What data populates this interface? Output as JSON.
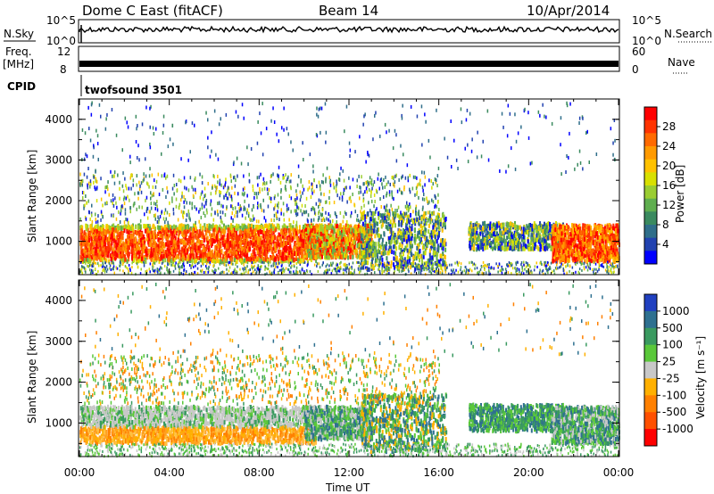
{
  "header": {
    "station": "Dome C East (fitACF)",
    "beam": "Beam 14",
    "date": "10/Apr/2014"
  },
  "top_panels": {
    "nsky_label": "N.Sky",
    "nsky_ticks": [
      "10^5",
      "10^0"
    ],
    "nsearch_label": "N.Search",
    "nsearch_ticks": [
      "10^5",
      "10^0"
    ],
    "freq_label": "Freq.",
    "freq_unit": "[MHz]",
    "freq_ticks": [
      "12",
      "8"
    ],
    "nave_label": "Nave",
    "nave_ticks": [
      "60",
      "0"
    ],
    "cpid_label": "CPID",
    "cpid_value": "twofsound 3501"
  },
  "chart_data": [
    {
      "type": "heatmap",
      "name": "power-panel",
      "xlabel": "",
      "ylabel": "Slant Range [km]",
      "yticks": [
        "4000",
        "3000",
        "2000",
        "1000"
      ],
      "ylim": [
        180,
        4500
      ],
      "xlim_hours": [
        0,
        24
      ],
      "colorbar": {
        "label": "Power [dB]",
        "ticks": [
          "28",
          "24",
          "20",
          "16",
          "12",
          "8",
          "4"
        ],
        "colors": [
          "#ff0000",
          "#ff3300",
          "#ff6a00",
          "#ff9a00",
          "#ffc200",
          "#d8e000",
          "#9acd32",
          "#5fae4f",
          "#3a8a5f",
          "#2f6e8a",
          "#2142b0",
          "#0000ff"
        ]
      },
      "bands": [
        {
          "x0": 0,
          "x1": 10.2,
          "y0": 600,
          "y1": 1350,
          "level": "high",
          "description_shown": "dense scatter"
        },
        {
          "x0": 10.2,
          "x1": 12.8,
          "y0": 700,
          "y1": 1300,
          "level": "high"
        },
        {
          "x0": 12.8,
          "x1": 16.2,
          "y0": 400,
          "y1": 1700,
          "level": "medium"
        },
        {
          "x0": 17.3,
          "x1": 21.5,
          "y0": 900,
          "y1": 1500,
          "level": "low"
        },
        {
          "x0": 21.5,
          "x1": 24,
          "y0": 600,
          "y1": 1400,
          "level": "high"
        }
      ]
    },
    {
      "type": "heatmap",
      "name": "velocity-panel",
      "xlabel": "Time UT",
      "ylabel": "Slant Range [km]",
      "yticks": [
        "4000",
        "3000",
        "2000",
        "1000"
      ],
      "ylim": [
        180,
        4500
      ],
      "xticks": [
        "00:00",
        "04:00",
        "08:00",
        "12:00",
        "16:00",
        "20:00",
        "00:00"
      ],
      "xlim_hours": [
        0,
        24
      ],
      "colorbar": {
        "label": "Velocity [m s⁻¹]",
        "ticks": [
          "1000",
          "500",
          "100",
          "25",
          "-25",
          "-100",
          "-500",
          "-1000"
        ],
        "colors": [
          "#2040c0",
          "#2e7090",
          "#3a9a60",
          "#5ac83a",
          "#c8c8c8",
          "#ffb000",
          "#ff8000",
          "#ff5000",
          "#ff0000"
        ]
      }
    }
  ]
}
